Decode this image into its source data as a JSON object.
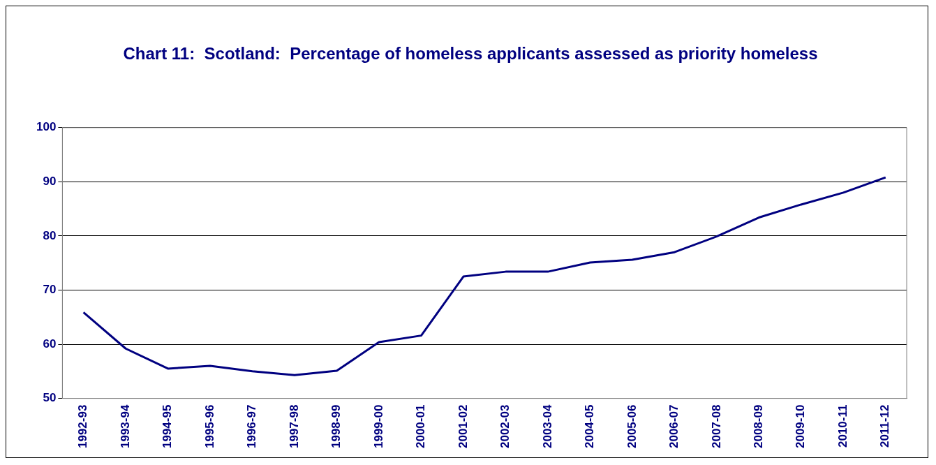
{
  "chart_data": {
    "type": "line",
    "title": "Chart 11:  Scotland:  Percentage of homeless applicants assessed as priority homeless",
    "categories": [
      "1992-93",
      "1993-94",
      "1994-95",
      "1995-96",
      "1996-97",
      "1997-98",
      "1998-99",
      "1999-00",
      "2000-01",
      "2001-02",
      "2002-03",
      "2003-04",
      "2004-05",
      "2005-06",
      "2006-07",
      "2007-08",
      "2008-09",
      "2009-10",
      "2010-11",
      "2011-12"
    ],
    "series": [
      {
        "color": "#000080",
        "values": [
          65.9,
          59.2,
          55.5,
          56,
          55,
          54.3,
          55.1,
          60.4,
          61.6,
          72.5,
          73.4,
          73.4,
          75.1,
          75.6,
          77,
          79.9,
          83.4,
          85.8,
          88,
          90.8
        ]
      }
    ],
    "ylim": [
      50,
      100
    ],
    "yticks": [
      50,
      60,
      70,
      80,
      90,
      100
    ],
    "grid": "y",
    "legend": false,
    "marker": "none",
    "line_style": "solid"
  }
}
